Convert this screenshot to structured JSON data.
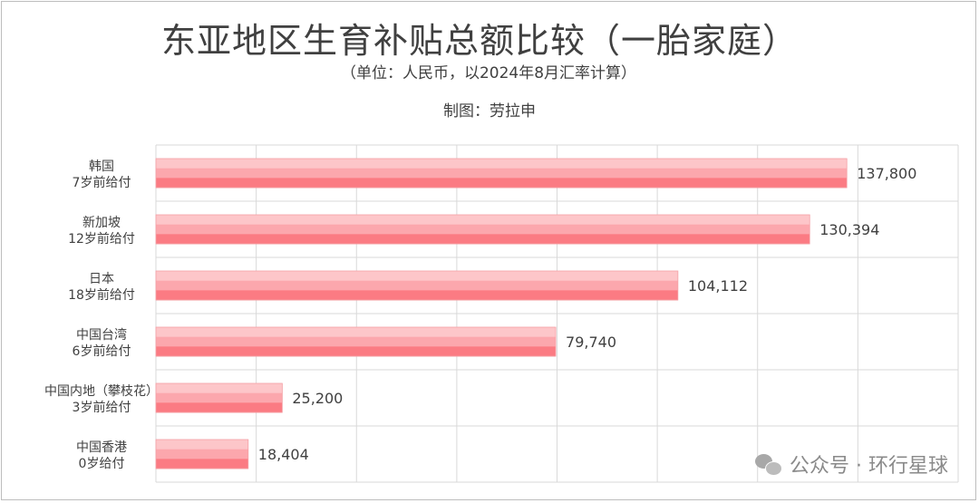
{
  "header": {
    "title": "东亚地区生育补贴总额比较（一胎家庭）",
    "subtitle": "（单位：人民币，以2024年8月汇率计算）",
    "credit": "制图：劳拉申"
  },
  "watermark": {
    "icon": "wechat-icon",
    "text": "公众号 · 环行星球"
  },
  "colors": {
    "bar_light": "#fdc6c9",
    "bar_mid": "#fca7ad",
    "bar_dark": "#fb7b83",
    "grid": "#d9d9d9"
  },
  "chart_data": {
    "type": "bar",
    "orientation": "horizontal",
    "categories": [
      [
        "韩国",
        "7岁前给付"
      ],
      [
        "新加坡",
        "12岁前给付"
      ],
      [
        "日本",
        "18岁前给付"
      ],
      [
        "中国台湾",
        "6岁前给付"
      ],
      [
        "中国内地（攀枝花）",
        "3岁前给付"
      ],
      [
        "中国香港",
        "0岁给付"
      ]
    ],
    "values": [
      137800,
      130394,
      104112,
      79740,
      25200,
      18404
    ],
    "value_labels": [
      "137,800",
      "130,394",
      "104,112",
      "79,740",
      "25,200",
      "18,404"
    ],
    "xlim": [
      0,
      160000
    ],
    "x_gridlines": [
      0,
      20000,
      40000,
      60000,
      80000,
      100000,
      120000,
      140000,
      160000
    ],
    "grid": true,
    "legend": "none"
  }
}
